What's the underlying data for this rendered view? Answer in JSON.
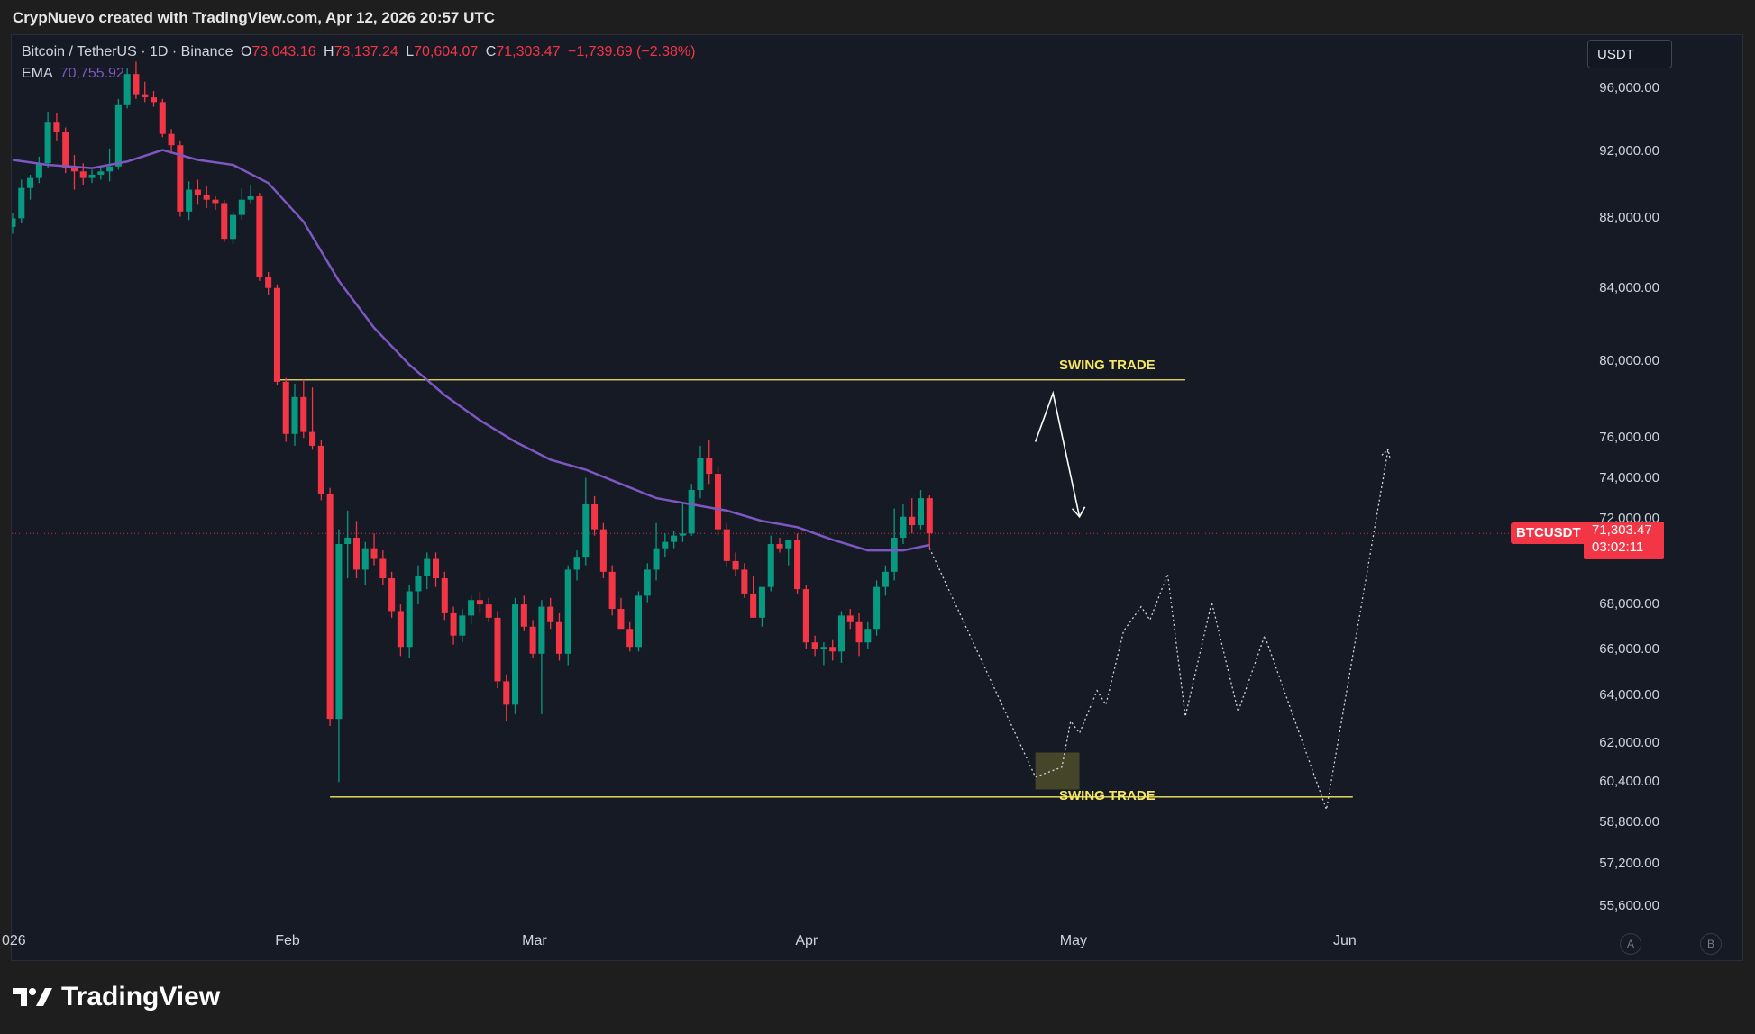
{
  "attribution": "CrypNuevo created with TradingView.com, Apr 12, 2026 20:57 UTC",
  "legend": {
    "symbol": "Bitcoin / TetherUS · 1D · Binance",
    "open_label": "O",
    "open": "73,043.16",
    "high_label": "H",
    "high": "73,137.24",
    "low_label": "L",
    "low": "70,604.07",
    "close_label": "C",
    "close": "71,303.47",
    "change": "−1,739.69 (−2.38%)",
    "ema_label": "EMA",
    "ema_value": "70,755.92"
  },
  "currency": "USDT",
  "symbol_tag": "BTCUSDT",
  "last_price": "71,303.47",
  "countdown": "03:02:11",
  "annotations": {
    "top": "SWING TRADE",
    "bottom": "SWING TRADE"
  },
  "footer": {
    "brand": "TradingView"
  },
  "buttons": {
    "a": "A",
    "b": "B"
  },
  "colors": {
    "up": "#089981",
    "down": "#f23645",
    "ema": "#7e57c2",
    "level": "#f5e663",
    "background": "#161a25"
  },
  "chart_data": {
    "type": "candlestick",
    "title": "Bitcoin / TetherUS · 1D · Binance",
    "y_ticks": [
      55600,
      57200,
      58800,
      60400,
      62000,
      64000,
      66000,
      68000,
      72000,
      74000,
      76000,
      80000,
      84000,
      88000,
      92000,
      96000
    ],
    "y_tick_labels": [
      "55,600.00",
      "57,200.00",
      "58,800.00",
      "60,400.00",
      "62,000.00",
      "64,000.00",
      "66,000.00",
      "68,000.00",
      "72,000.00",
      "74,000.00",
      "76,000.00",
      "80,000.00",
      "84,000.00",
      "88,000.00",
      "92,000.00",
      "96,000.00"
    ],
    "x_ticks": [
      {
        "date": "2026-01-01",
        "label": "026"
      },
      {
        "date": "2026-02-01",
        "label": "Feb"
      },
      {
        "date": "2026-03-01",
        "label": "Mar"
      },
      {
        "date": "2026-04-01",
        "label": "Apr"
      },
      {
        "date": "2026-05-01",
        "label": "May"
      },
      {
        "date": "2026-06-01",
        "label": "Jun"
      }
    ],
    "x_range": [
      "2026-01-01",
      "2026-06-24"
    ],
    "y_range": [
      54800,
      98200
    ],
    "scale": "log",
    "grid": false,
    "series_ohlc": [
      [
        "2026-01-01",
        87500,
        88300,
        87100,
        88000
      ],
      [
        "2026-01-02",
        88000,
        90300,
        87700,
        89800
      ],
      [
        "2026-01-03",
        89800,
        90600,
        89100,
        90400
      ],
      [
        "2026-01-04",
        90400,
        91700,
        90100,
        91300
      ],
      [
        "2026-01-05",
        91300,
        94500,
        91000,
        93800
      ],
      [
        "2026-01-06",
        93800,
        94400,
        92700,
        93200
      ],
      [
        "2026-01-07",
        93200,
        93500,
        90700,
        91000
      ],
      [
        "2026-01-08",
        91000,
        91800,
        89700,
        90800
      ],
      [
        "2026-01-09",
        90800,
        91300,
        90000,
        90400
      ],
      [
        "2026-01-10",
        90400,
        90900,
        90100,
        90600
      ],
      [
        "2026-01-11",
        90600,
        91000,
        90300,
        90800
      ],
      [
        "2026-01-12",
        90800,
        92200,
        90200,
        91100
      ],
      [
        "2026-01-13",
        91100,
        95300,
        90900,
        94900
      ],
      [
        "2026-01-14",
        94900,
        97300,
        94700,
        96900
      ],
      [
        "2026-01-15",
        96900,
        97700,
        95300,
        95600
      ],
      [
        "2026-01-16",
        95600,
        96400,
        95100,
        95400
      ],
      [
        "2026-01-17",
        95400,
        95800,
        94800,
        95100
      ],
      [
        "2026-01-18",
        95100,
        95300,
        92900,
        93100
      ],
      [
        "2026-01-19",
        93100,
        93400,
        91900,
        92400
      ],
      [
        "2026-01-20",
        92400,
        92700,
        88100,
        88400
      ],
      [
        "2026-01-21",
        88400,
        90200,
        87900,
        89700
      ],
      [
        "2026-01-22",
        89700,
        90300,
        88800,
        89400
      ],
      [
        "2026-01-23",
        89400,
        89900,
        88600,
        89100
      ],
      [
        "2026-01-24",
        89100,
        89300,
        88500,
        88900
      ],
      [
        "2026-01-25",
        88900,
        89100,
        86600,
        86800
      ],
      [
        "2026-01-26",
        86800,
        88400,
        86500,
        88200
      ],
      [
        "2026-01-27",
        88200,
        89800,
        87900,
        89100
      ],
      [
        "2026-01-28",
        89100,
        90000,
        88900,
        89300
      ],
      [
        "2026-01-29",
        89300,
        89500,
        84400,
        84600
      ],
      [
        "2026-01-30",
        84600,
        84900,
        83600,
        84000
      ],
      [
        "2026-01-31",
        84000,
        84200,
        78700,
        78900
      ],
      [
        "2026-02-01",
        78900,
        79100,
        75800,
        76200
      ],
      [
        "2026-02-02",
        76200,
        78800,
        75600,
        78100
      ],
      [
        "2026-02-03",
        78100,
        79000,
        76000,
        76300
      ],
      [
        "2026-02-04",
        76300,
        78600,
        75400,
        75600
      ],
      [
        "2026-02-05",
        75600,
        75900,
        72900,
        73200
      ],
      [
        "2026-02-06",
        73200,
        73500,
        62700,
        63000
      ],
      [
        "2026-02-07",
        63000,
        71500,
        60400,
        70800
      ],
      [
        "2026-02-08",
        70800,
        72400,
        69200,
        71100
      ],
      [
        "2026-02-09",
        71100,
        71900,
        69200,
        69600
      ],
      [
        "2026-02-10",
        69600,
        70900,
        68900,
        70600
      ],
      [
        "2026-02-11",
        70600,
        71300,
        69800,
        70100
      ],
      [
        "2026-02-12",
        70100,
        70500,
        68900,
        69200
      ],
      [
        "2026-02-13",
        69200,
        69500,
        67400,
        67700
      ],
      [
        "2026-02-14",
        67700,
        68000,
        65700,
        66100
      ],
      [
        "2026-02-15",
        66100,
        68900,
        65600,
        68600
      ],
      [
        "2026-02-16",
        68600,
        69800,
        68000,
        69300
      ],
      [
        "2026-02-17",
        69300,
        70400,
        68700,
        70100
      ],
      [
        "2026-02-18",
        70100,
        70400,
        68800,
        69200
      ],
      [
        "2026-02-19",
        69200,
        69500,
        67300,
        67600
      ],
      [
        "2026-02-20",
        67600,
        67900,
        66200,
        66600
      ],
      [
        "2026-02-21",
        66600,
        67800,
        66300,
        67500
      ],
      [
        "2026-02-22",
        67500,
        68400,
        67100,
        68200
      ],
      [
        "2026-02-23",
        68200,
        68600,
        67600,
        68000
      ],
      [
        "2026-02-24",
        68000,
        68300,
        67200,
        67400
      ],
      [
        "2026-02-25",
        67400,
        67700,
        64300,
        64600
      ],
      [
        "2026-02-26",
        64600,
        64900,
        62900,
        63600
      ],
      [
        "2026-02-27",
        63600,
        68300,
        63200,
        68000
      ],
      [
        "2026-02-28",
        68000,
        68400,
        66800,
        67000
      ],
      [
        "2026-03-01",
        67000,
        67300,
        65600,
        65800
      ],
      [
        "2026-03-02",
        65800,
        68200,
        63200,
        67900
      ],
      [
        "2026-03-03",
        67900,
        68300,
        66900,
        67200
      ],
      [
        "2026-03-04",
        67200,
        67600,
        65500,
        65800
      ],
      [
        "2026-03-05",
        65800,
        69800,
        65300,
        69600
      ],
      [
        "2026-03-06",
        69600,
        70500,
        69100,
        70200
      ],
      [
        "2026-03-07",
        70200,
        74000,
        69800,
        72700
      ],
      [
        "2026-03-08",
        72700,
        73100,
        71200,
        71500
      ],
      [
        "2026-03-09",
        71500,
        71800,
        69200,
        69500
      ],
      [
        "2026-03-10",
        69500,
        69800,
        67500,
        67800
      ],
      [
        "2026-03-11",
        67800,
        68300,
        67100,
        66900
      ],
      [
        "2026-03-12",
        66900,
        67200,
        65900,
        66100
      ],
      [
        "2026-03-13",
        66100,
        68600,
        65900,
        68400
      ],
      [
        "2026-03-14",
        68400,
        69900,
        68100,
        69600
      ],
      [
        "2026-03-15",
        69600,
        71800,
        69100,
        70600
      ],
      [
        "2026-03-16",
        70600,
        71300,
        70200,
        70900
      ],
      [
        "2026-03-17",
        70900,
        71400,
        70600,
        71200
      ],
      [
        "2026-03-18",
        71200,
        72800,
        70900,
        71300
      ],
      [
        "2026-03-19",
        71300,
        73700,
        71200,
        73400
      ],
      [
        "2026-03-20",
        73400,
        75600,
        73000,
        75000
      ],
      [
        "2026-03-21",
        75000,
        75900,
        73700,
        74200
      ],
      [
        "2026-03-22",
        74200,
        74600,
        71200,
        71500
      ],
      [
        "2026-03-23",
        71500,
        71800,
        69700,
        70000
      ],
      [
        "2026-03-24",
        70000,
        70400,
        69300,
        69600
      ],
      [
        "2026-03-25",
        69600,
        69900,
        68300,
        68500
      ],
      [
        "2026-03-26",
        68500,
        69300,
        67800,
        67400
      ],
      [
        "2026-03-27",
        67400,
        67700,
        67000,
        68800
      ],
      [
        "2026-03-28",
        68800,
        71200,
        68600,
        70800
      ],
      [
        "2026-03-29",
        70800,
        71100,
        70400,
        70600
      ],
      [
        "2026-03-30",
        70600,
        70900,
        69800,
        71000
      ],
      [
        "2026-03-31",
        71000,
        71300,
        68500,
        68700
      ],
      [
        "2026-04-01",
        68700,
        68900,
        66000,
        66300
      ],
      [
        "2026-04-02",
        66300,
        66600,
        65700,
        66000
      ],
      [
        "2026-04-03",
        66000,
        66300,
        65300,
        66100
      ],
      [
        "2026-04-04",
        66100,
        66400,
        65500,
        65900
      ],
      [
        "2026-04-05",
        65900,
        67700,
        65400,
        67500
      ],
      [
        "2026-04-06",
        67500,
        67800,
        66900,
        67200
      ],
      [
        "2026-04-07",
        67200,
        67600,
        65700,
        66300
      ],
      [
        "2026-04-08",
        66300,
        67200,
        66000,
        66900
      ],
      [
        "2026-04-09",
        66900,
        69100,
        66600,
        68800
      ],
      [
        "2026-04-10",
        68800,
        69800,
        68400,
        69500
      ],
      [
        "2026-04-11",
        69500,
        72500,
        69100,
        71100
      ],
      [
        "2026-04-12",
        71100,
        72700,
        70800,
        72100
      ],
      [
        "2026-04-13",
        72100,
        73000,
        71300,
        71700
      ],
      [
        "2026-04-14",
        71700,
        73400,
        71500,
        73000
      ],
      [
        "2026-04-15",
        73000,
        73137,
        70604,
        71303
      ]
    ],
    "ema": [
      [
        "2026-01-01",
        91500
      ],
      [
        "2026-01-05",
        91200
      ],
      [
        "2026-01-10",
        91000
      ],
      [
        "2026-01-14",
        91400
      ],
      [
        "2026-01-18",
        92100
      ],
      [
        "2026-01-22",
        91500
      ],
      [
        "2026-01-26",
        91200
      ],
      [
        "2026-01-30",
        90100
      ],
      [
        "2026-02-03",
        87800
      ],
      [
        "2026-02-07",
        84400
      ],
      [
        "2026-02-11",
        81800
      ],
      [
        "2026-02-15",
        79800
      ],
      [
        "2026-02-19",
        78200
      ],
      [
        "2026-02-23",
        76900
      ],
      [
        "2026-02-27",
        75800
      ],
      [
        "2026-03-03",
        74900
      ],
      [
        "2026-03-07",
        74400
      ],
      [
        "2026-03-11",
        73700
      ],
      [
        "2026-03-15",
        73000
      ],
      [
        "2026-03-19",
        72700
      ],
      [
        "2026-03-23",
        72400
      ],
      [
        "2026-03-27",
        71900
      ],
      [
        "2026-03-31",
        71600
      ],
      [
        "2026-04-04",
        71000
      ],
      [
        "2026-04-08",
        70500
      ],
      [
        "2026-04-12",
        70500
      ],
      [
        "2026-04-15",
        70756
      ]
    ],
    "levels": [
      {
        "label": "SWING TRADE",
        "price": 79000,
        "from": "2026-01-31",
        "to": "2026-05-14"
      },
      {
        "label": "SWING TRADE",
        "price": 59800,
        "from": "2026-02-06",
        "to": "2026-06-02"
      }
    ],
    "projection_top": [
      [
        "2026-04-27",
        75800
      ],
      [
        "2026-04-29",
        78300
      ],
      [
        "2026-05-02",
        72100
      ]
    ],
    "projection_path": [
      [
        "2026-04-15",
        70600
      ],
      [
        "2026-04-27",
        60600
      ],
      [
        "2026-04-30",
        61000
      ],
      [
        "2026-05-01",
        62900
      ],
      [
        "2026-05-02",
        62400
      ],
      [
        "2026-05-04",
        64200
      ],
      [
        "2026-05-05",
        63600
      ],
      [
        "2026-05-07",
        66800
      ],
      [
        "2026-05-09",
        67900
      ],
      [
        "2026-05-10",
        67300
      ],
      [
        "2026-05-12",
        69400
      ],
      [
        "2026-05-14",
        63100
      ],
      [
        "2026-05-17",
        68100
      ],
      [
        "2026-05-20",
        63300
      ],
      [
        "2026-05-23",
        66600
      ],
      [
        "2026-05-30",
        59300
      ],
      [
        "2026-06-06",
        75400
      ]
    ],
    "highlight_box": {
      "from": "2026-04-27",
      "to": "2026-05-02",
      "low": 60100,
      "high": 61600
    }
  }
}
